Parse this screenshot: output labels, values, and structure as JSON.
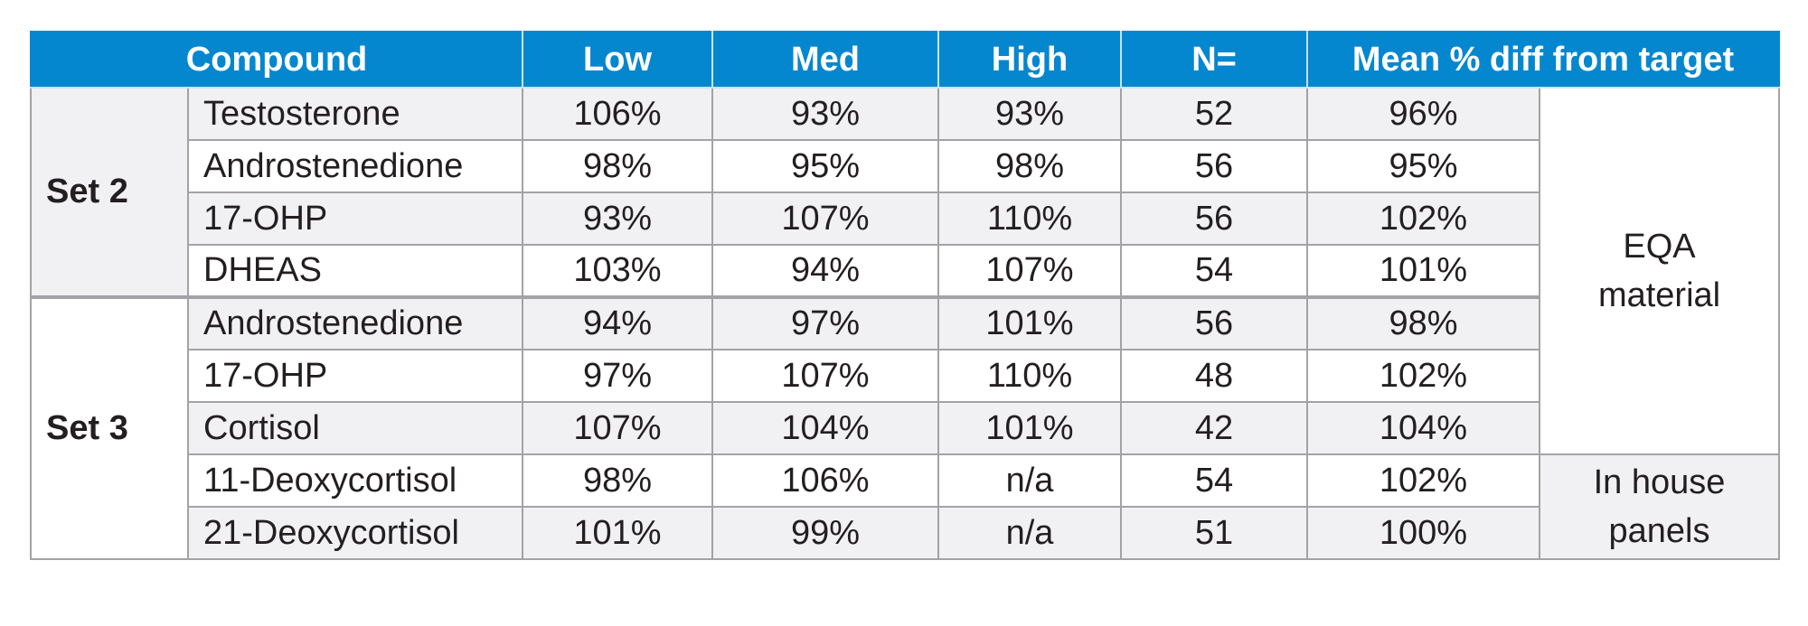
{
  "headers": [
    "Compound",
    "Low",
    "Med",
    "High",
    "N=",
    "Mean % diff from target"
  ],
  "sets": [
    {
      "label": "Set 2",
      "rows": [
        {
          "compound": "Testosterone",
          "low": "106%",
          "med": "93%",
          "high": "93%",
          "n": "52",
          "mean": "96%"
        },
        {
          "compound": "Androstenedione",
          "low": "98%",
          "med": "95%",
          "high": "98%",
          "n": "56",
          "mean": "95%"
        },
        {
          "compound": "17-OHP",
          "low": "93%",
          "med": "107%",
          "high": "110%",
          "n": "56",
          "mean": "102%"
        },
        {
          "compound": "DHEAS",
          "low": "103%",
          "med": "94%",
          "high": "107%",
          "n": "54",
          "mean": "101%"
        }
      ]
    },
    {
      "label": "Set 3",
      "rows": [
        {
          "compound": "Androstenedione",
          "low": "94%",
          "med": "97%",
          "high": "101%",
          "n": "56",
          "mean": "98%"
        },
        {
          "compound": "17-OHP",
          "low": "97%",
          "med": "107%",
          "high": "110%",
          "n": "48",
          "mean": "102%"
        },
        {
          "compound": "Cortisol",
          "low": "107%",
          "med": "104%",
          "high": "101%",
          "n": "42",
          "mean": "104%"
        },
        {
          "compound": "11-Deoxycortisol",
          "low": "98%",
          "med": "106%",
          "high": "n/a",
          "n": "54",
          "mean": "102%"
        },
        {
          "compound": "21-Deoxycortisol",
          "low": "101%",
          "med": "99%",
          "high": "n/a",
          "n": "51",
          "mean": "100%"
        }
      ]
    }
  ],
  "notes": [
    {
      "line1": "EQA",
      "line2": "material"
    },
    {
      "line1": "In house",
      "line2": "panels"
    }
  ],
  "colors": {
    "header_bg": "#0487cf",
    "header_text": "#ffffff",
    "shaded_row": "#f1f1f4",
    "border": "#a3a3a7",
    "text": "#231f20"
  }
}
